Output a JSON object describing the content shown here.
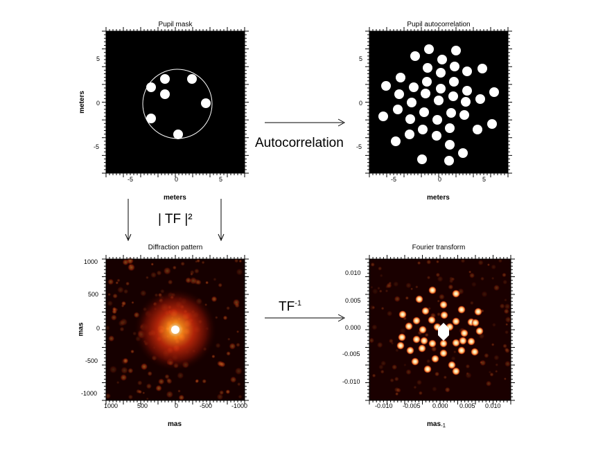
{
  "panels": {
    "pupil_mask": {
      "title": "Pupil mask",
      "xlabel": "meters",
      "ylabel": "meters",
      "xticks": [
        "-5",
        "0",
        "5"
      ],
      "yticks": [
        "5",
        "0",
        "-5"
      ]
    },
    "pupil_autocorrelation": {
      "title": "Pupil autocorrelation",
      "xlabel": "meters",
      "xticks": [
        "-5",
        "0",
        "5"
      ],
      "yticks": [
        "5",
        "0",
        "-5"
      ]
    },
    "diffraction_pattern": {
      "title": "Diffraction pattern",
      "xlabel": "mas",
      "ylabel": "mas",
      "xticks": [
        "1000",
        "500",
        "0",
        "-500",
        "-1000"
      ],
      "yticks": [
        "1000",
        "500",
        "0",
        "-500",
        "-1000"
      ]
    },
    "fourier_transform": {
      "title": "Fourier transform",
      "xlabel": "mas",
      "xlabel_sup": "-1",
      "xticks": [
        "-0.010",
        "-0.005",
        "0.000",
        "0.005",
        "0.010"
      ],
      "yticks": [
        "0.010",
        "0.005",
        "0.000",
        "-0.005",
        "-0.010"
      ]
    }
  },
  "arrows": {
    "autocorrelation": "Autocorrelation",
    "tf_squared": "| TF |²",
    "tf_inverse_base": "TF",
    "tf_inverse_sup": "-1"
  }
}
